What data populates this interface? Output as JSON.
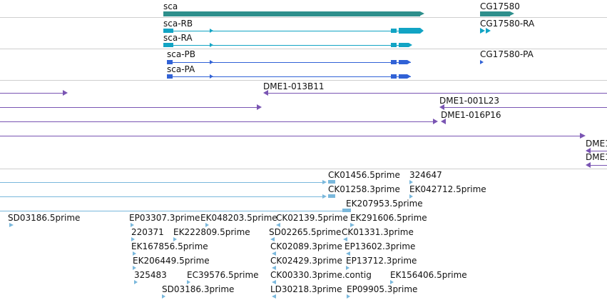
{
  "colors": {
    "gene": "#2e8f8c",
    "transcript": "#12a4c4",
    "protein": "#3162d6",
    "clone": "#7a55b3",
    "est": "#7ab8dc",
    "divider": "#cfcfcf"
  },
  "gene_track": {
    "genes": [
      "sca",
      "CG17580"
    ]
  },
  "transcript_track": {
    "transcripts": [
      "sca-RB",
      "sca-RA",
      "CG17580-RA"
    ]
  },
  "protein_track": {
    "proteins": [
      "sca-PB",
      "sca-PA",
      "CG17580-PA"
    ]
  },
  "clone_track": {
    "clones": [
      "DME1-013B11",
      "DME1-001L23",
      "DME1-016P16",
      "DME1",
      "DME1"
    ]
  },
  "est_track": {
    "ests": [
      "CK01456.5prime",
      "324647",
      "CK01258.3prime",
      "EK042712.5prime",
      "EK207953.5prime",
      "SD03186.5prime",
      "EP03307.3prime",
      "EK048203.5prime",
      "CK02139.5prime",
      "EK291606.5prime",
      "220371",
      "EK222809.5prime",
      "SD02265.5prime",
      "CK01331.3prime",
      "EK167856.5prime",
      "CK02089.3prime",
      "EP13602.3prime",
      "EK206449.5prime",
      "CK02429.3prime",
      "EP13712.3prime",
      "325483",
      "EC39576.5prime",
      "CK00330.3prime.contig",
      "EK156406.5prime",
      "SD03186.3prime",
      "LD30218.3prime",
      "EP09905.3prime"
    ]
  }
}
